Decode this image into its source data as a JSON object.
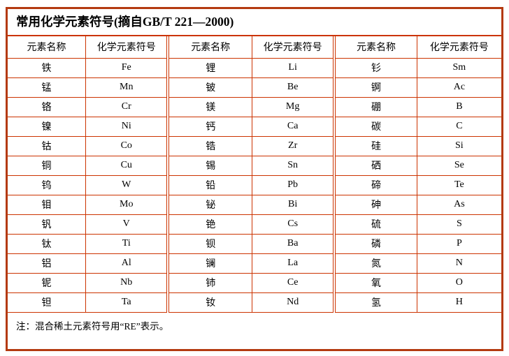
{
  "title": "常用化学元素符号(摘自GB/T 221—2000)",
  "header": {
    "name_label": "元素名称",
    "symbol_label": "化学元素符号"
  },
  "note": "注：混合稀土元素符号用“RE”表示。",
  "colors": {
    "outer_border": "#b43a10",
    "grid_line": "#cc3300",
    "text": "#000000",
    "background": "#ffffff"
  },
  "table": {
    "groups": [
      {
        "elements": [
          {
            "name": "铁",
            "symbol": "Fe"
          },
          {
            "name": "锰",
            "symbol": "Mn"
          },
          {
            "name": "铬",
            "symbol": "Cr"
          },
          {
            "name": "镍",
            "symbol": "Ni"
          },
          {
            "name": "钴",
            "symbol": "Co"
          },
          {
            "name": "铜",
            "symbol": "Cu"
          },
          {
            "name": "钨",
            "symbol": "W"
          },
          {
            "name": "钼",
            "symbol": "Mo"
          },
          {
            "name": "钒",
            "symbol": "V"
          },
          {
            "name": "钛",
            "symbol": "Ti"
          },
          {
            "name": "铝",
            "symbol": "Al"
          },
          {
            "name": "铌",
            "symbol": "Nb"
          },
          {
            "name": "钽",
            "symbol": "Ta"
          }
        ]
      },
      {
        "elements": [
          {
            "name": "锂",
            "symbol": "Li"
          },
          {
            "name": "铍",
            "symbol": "Be"
          },
          {
            "name": "镁",
            "symbol": "Mg"
          },
          {
            "name": "钙",
            "symbol": "Ca"
          },
          {
            "name": "锆",
            "symbol": "Zr"
          },
          {
            "name": "锡",
            "symbol": "Sn"
          },
          {
            "name": "铅",
            "symbol": "Pb"
          },
          {
            "name": "铋",
            "symbol": "Bi"
          },
          {
            "name": "铯",
            "symbol": "Cs"
          },
          {
            "name": "钡",
            "symbol": "Ba"
          },
          {
            "name": "镧",
            "symbol": "La"
          },
          {
            "name": "铈",
            "symbol": "Ce"
          },
          {
            "name": "钕",
            "symbol": "Nd"
          }
        ]
      },
      {
        "elements": [
          {
            "name": "钐",
            "symbol": "Sm"
          },
          {
            "name": "锕",
            "symbol": "Ac"
          },
          {
            "name": "硼",
            "symbol": "B"
          },
          {
            "name": "碳",
            "symbol": "C"
          },
          {
            "name": "硅",
            "symbol": "Si"
          },
          {
            "name": "硒",
            "symbol": "Se"
          },
          {
            "name": "碲",
            "symbol": "Te"
          },
          {
            "name": "砷",
            "symbol": "As"
          },
          {
            "name": "硫",
            "symbol": "S"
          },
          {
            "name": "磷",
            "symbol": "P"
          },
          {
            "name": "氮",
            "symbol": "N"
          },
          {
            "name": "氧",
            "symbol": "O"
          },
          {
            "name": "氢",
            "symbol": "H"
          }
        ]
      }
    ]
  }
}
